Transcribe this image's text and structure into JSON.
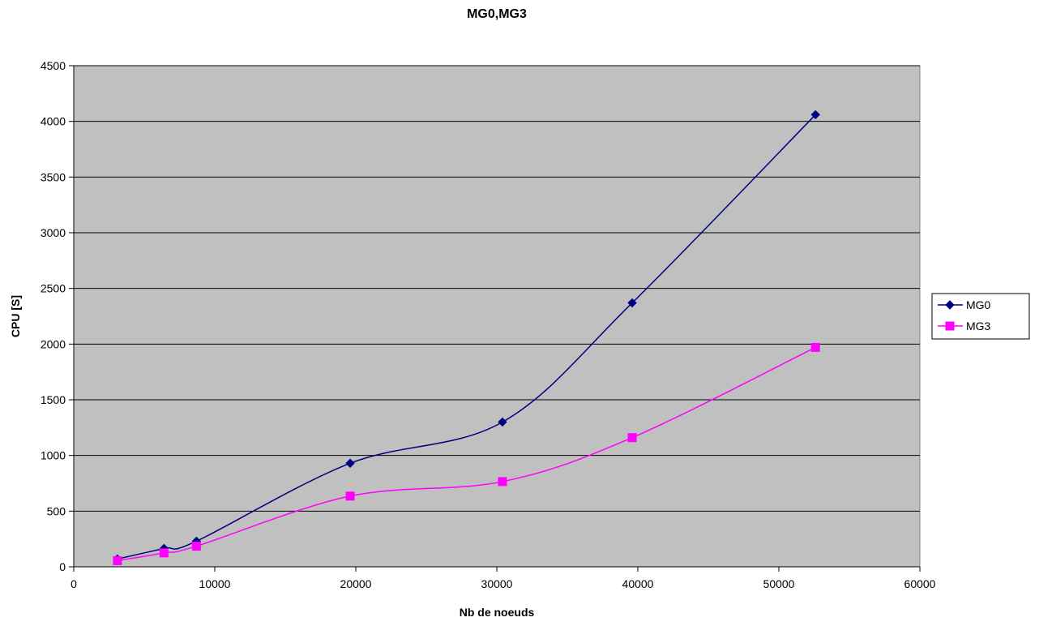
{
  "chart_data": {
    "type": "line",
    "title": "MG0,MG3",
    "xlabel": "Nb de noeuds",
    "ylabel": "CPU [S]",
    "xlim": [
      0,
      60000
    ],
    "ylim": [
      0,
      4500
    ],
    "x_ticks": [
      0,
      10000,
      20000,
      30000,
      40000,
      50000,
      60000
    ],
    "x_tick_labels": [
      "0",
      "10000",
      "20000",
      "30000",
      "40000",
      "50000",
      "60000"
    ],
    "y_ticks": [
      0,
      500,
      1000,
      1500,
      2000,
      2500,
      3000,
      3500,
      4000,
      4500
    ],
    "y_tick_labels": [
      "0",
      "500",
      "1000",
      "1500",
      "2000",
      "2500",
      "3000",
      "3500",
      "4000",
      "4500"
    ],
    "grid": "horizontal",
    "smooth": true,
    "legend_position": "right",
    "plot_background": "#c0c0c0",
    "series": [
      {
        "name": "MG0",
        "color": "#000080",
        "marker": "diamond",
        "x": [
          3100,
          6400,
          8700,
          19600,
          30400,
          39600,
          52600
        ],
        "y": [
          70,
          165,
          230,
          930,
          1300,
          2370,
          4060
        ]
      },
      {
        "name": "MG3",
        "color": "#ff00ff",
        "marker": "square",
        "x": [
          3100,
          6400,
          8700,
          19600,
          30400,
          39600,
          52600
        ],
        "y": [
          55,
          125,
          185,
          635,
          765,
          1160,
          1970
        ]
      }
    ]
  }
}
